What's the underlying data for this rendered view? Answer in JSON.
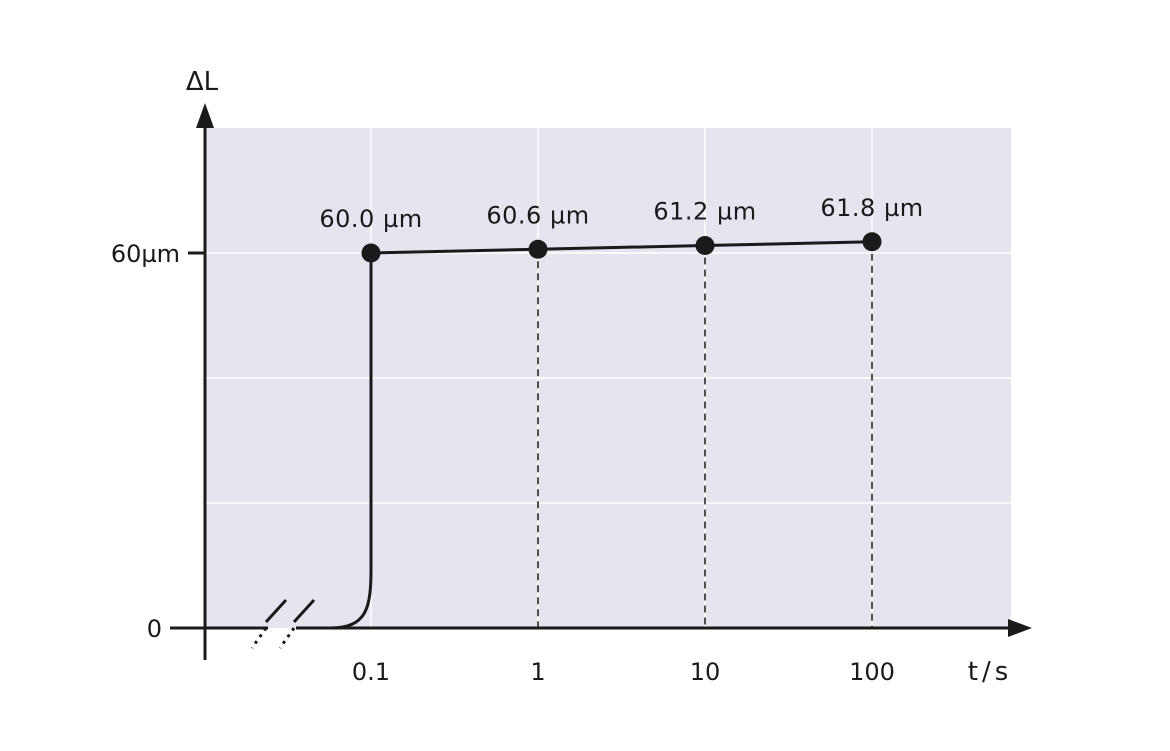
{
  "chart_data": {
    "type": "line",
    "x_scale": "log",
    "xlabel": "t/s",
    "ylabel": "ΔL",
    "x_ticks": [
      0.1,
      1,
      10,
      100
    ],
    "x_tick_labels": [
      "0.1",
      "1",
      "10",
      "100"
    ],
    "y_tick_labels": [
      "0",
      "60µm"
    ],
    "x_axis_break": true,
    "grid": true,
    "series": [
      {
        "x": [
          0.1,
          1,
          10,
          100
        ],
        "y": [
          60.0,
          60.6,
          61.2,
          61.8
        ],
        "labels": [
          "60.0 µm",
          "60.6 µm",
          "61.2 µm",
          "61.8 µm"
        ],
        "drop_lines": true
      }
    ],
    "colors": {
      "plot_background": "#e6e4ee",
      "grid": "#ffffff",
      "ink": "#1a1a1a"
    }
  }
}
